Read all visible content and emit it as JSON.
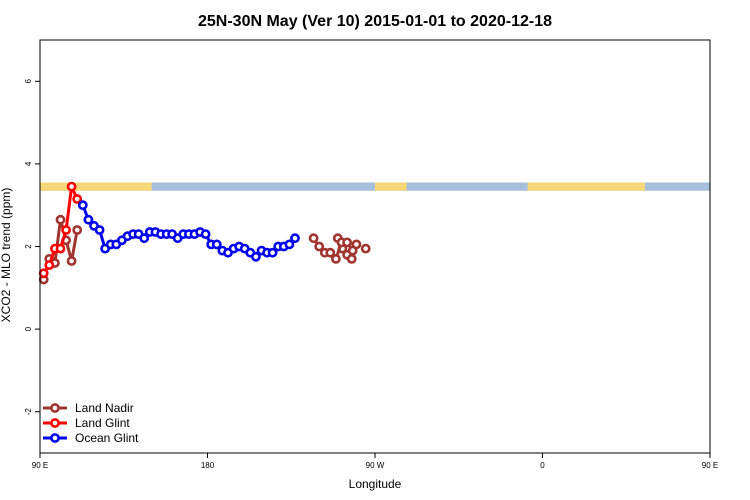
{
  "chart_data": {
    "type": "line",
    "title": "25N-30N May (Ver 10)   2015-01-01 to 2020-12-18",
    "xlabel": "Longitude",
    "ylabel": "XCO2 - MLO trend (ppm)",
    "xlim": [
      90,
      450
    ],
    "ylim": [
      -3,
      7
    ],
    "x_ticks": [
      {
        "value": 90,
        "label": "90 E"
      },
      {
        "value": 180,
        "label": "180"
      },
      {
        "value": 270,
        "label": "90 W"
      },
      {
        "value": 360,
        "label": "0"
      },
      {
        "value": 450,
        "label": "90 E"
      },
      {
        "value": 540,
        "label": "180"
      }
    ],
    "y_ticks": [
      {
        "value": -2,
        "label": "-2"
      },
      {
        "value": 0,
        "label": "0"
      },
      {
        "value": 2,
        "label": "2"
      },
      {
        "value": 4,
        "label": "4"
      },
      {
        "value": 6,
        "label": "6"
      }
    ],
    "grid": false,
    "legend_position": "bottom-left",
    "land_ocean_band": {
      "y_range": [
        3.35,
        3.55
      ],
      "ocean_color": "#a8bfdc",
      "land_color": "#f7d878",
      "land_segments": [
        [
          90,
          150
        ],
        [
          270,
          287
        ],
        [
          352,
          415
        ],
        [
          450,
          510
        ]
      ]
    },
    "series": [
      {
        "name": "Land Nadir",
        "color": "#a0342f",
        "x": [
          92,
          95,
          98,
          101,
          104,
          107,
          110,
          113,
          130,
          133,
          136,
          139,
          142,
          145,
          148,
          155,
          230,
          232.5,
          235,
          237.5,
          240,
          242.5,
          245,
          247.5,
          250,
          252.5,
          255,
          257.5,
          260,
          262.5,
          265,
          267.5,
          270,
          272.5,
          335,
          337.5,
          340,
          342.5,
          345,
          347.5,
          350,
          352.5,
          355,
          357.5,
          360,
          362.5,
          365,
          367.5,
          370,
          372.5,
          375,
          377.5,
          380,
          382.5,
          385,
          387.5,
          390,
          392.5,
          395,
          397.5,
          400,
          402.5,
          405,
          407.5,
          410,
          412.5,
          415,
          417.5,
          420,
          422.5,
          425,
          427.5,
          430,
          432.5,
          435,
          437.5,
          440,
          442.5,
          445,
          447.5
        ],
        "y": [
          1.2,
          1.7,
          1.6,
          2.65,
          2.15,
          1.65,
          2.4,
          null,
          null,
          null,
          null,
          null,
          null,
          null,
          null,
          null,
          null,
          null,
          null,
          null,
          null,
          null,
          null,
          null,
          2.2,
          1.95,
          1.8,
          1.7,
          2.05,
          null,
          1.95,
          null,
          null,
          null,
          null,
          null,
          null,
          null,
          null,
          null,
          null,
          null,
          null,
          null,
          null,
          null,
          null,
          null,
          null,
          null,
          null,
          null,
          null,
          null,
          null,
          null,
          null,
          null,
          null,
          null,
          null,
          null,
          null,
          null,
          null,
          null,
          null,
          null,
          null,
          null,
          null,
          null,
          null,
          null,
          null,
          null,
          null,
          null,
          null,
          null
        ]
      },
      {
        "name": "Land Glint",
        "color": "#ff0000",
        "x": [
          92,
          95,
          98,
          101,
          104,
          107,
          110,
          113
        ],
        "y": [
          1.35,
          1.55,
          1.95,
          1.95,
          2.4,
          3.45,
          3.15,
          null
        ]
      },
      {
        "name": "Ocean Glint",
        "color": "#0000ee",
        "x": [
          113,
          116,
          119,
          122,
          125,
          128,
          131,
          134,
          137,
          140,
          143,
          146,
          149,
          152,
          155,
          158,
          161,
          164,
          167,
          170,
          173,
          176,
          179,
          182,
          185,
          188,
          191,
          194,
          197,
          200,
          203,
          206,
          209,
          212,
          215,
          218,
          221,
          224,
          227
        ],
        "y": [
          3.0,
          2.65,
          2.5,
          2.4,
          1.95,
          2.05,
          2.05,
          2.15,
          2.25,
          2.3,
          2.3,
          2.2,
          2.35,
          2.35,
          2.3,
          2.3,
          2.3,
          2.2,
          2.3,
          2.3,
          2.3,
          2.35,
          2.3,
          2.05,
          2.05,
          1.9,
          1.85,
          1.95,
          2.0,
          1.95,
          1.85,
          1.75,
          1.9,
          1.85,
          1.85,
          2.0,
          2.0,
          2.05,
          2.2
        ]
      }
    ],
    "extra_segments": [
      {
        "series": "Land Nadir",
        "x": [
          237,
          240,
          243,
          246,
          249,
          252,
          255,
          258,
          261,
          264,
          267,
          270,
          273,
          276,
          279,
          282,
          285,
          288,
          291,
          294,
          297,
          300,
          303,
          306,
          309,
          312,
          315,
          318,
          321,
          324,
          327,
          330,
          333,
          336,
          339,
          342,
          345,
          348
        ],
        "y": [
          2.2,
          2.0,
          1.85,
          1.85,
          1.7,
          2.1,
          2.1,
          1.9,
          null,
          null,
          null,
          null,
          null,
          null,
          null,
          null,
          null,
          null,
          null,
          null,
          null,
          null,
          null,
          null,
          null,
          null,
          null,
          null,
          null,
          null,
          null,
          null,
          null,
          null,
          null,
          null,
          null,
          null
        ]
      }
    ]
  },
  "legend": {
    "items": [
      {
        "label": "Land Nadir",
        "color": "#a0342f"
      },
      {
        "label": "Land Glint",
        "color": "#ff0000"
      },
      {
        "label": "Ocean Glint",
        "color": "#0000ee"
      }
    ]
  }
}
